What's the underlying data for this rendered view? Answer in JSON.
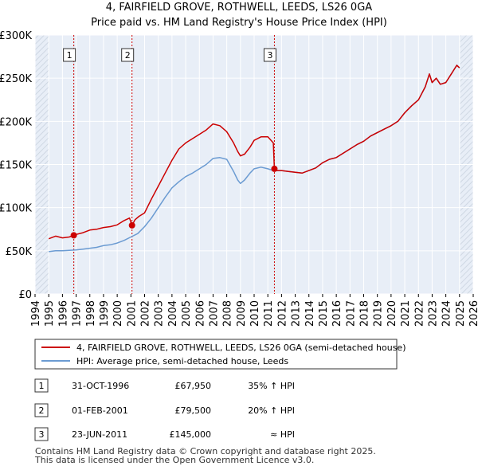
{
  "chart_data": {
    "type": "line",
    "title": "4, FAIRFIELD GROVE, ROTHWELL, LEEDS, LS26 0GA",
    "subtitle": "Price paid vs. HM Land Registry's House Price Index (HPI)",
    "xlabel": "",
    "ylabel": "",
    "xlim": [
      1994,
      2026
    ],
    "ylim": [
      0,
      300000
    ],
    "y_ticks": [
      0,
      50000,
      100000,
      150000,
      200000,
      250000,
      300000
    ],
    "y_tick_labels": [
      "£0",
      "£50K",
      "£100K",
      "£150K",
      "£200K",
      "£250K",
      "£300K"
    ],
    "x_ticks": [
      1994,
      1995,
      1996,
      1997,
      1998,
      1999,
      2000,
      2001,
      2002,
      2003,
      2004,
      2005,
      2006,
      2007,
      2008,
      2009,
      2010,
      2011,
      2012,
      2013,
      2014,
      2015,
      2016,
      2017,
      2018,
      2019,
      2020,
      2021,
      2022,
      2023,
      2024,
      2025,
      2026
    ],
    "x_tick_labels": [
      "1994",
      "1995",
      "1996",
      "1997",
      "1998",
      "1999",
      "2000",
      "2001",
      "2002",
      "2003",
      "2004",
      "2005",
      "2006",
      "2007",
      "2008",
      "2009",
      "2010",
      "2011",
      "2012",
      "2013",
      "2014",
      "2015",
      "2016",
      "2017",
      "2018",
      "2019",
      "2020",
      "2021",
      "2022",
      "2023",
      "2024",
      "2025",
      "2026"
    ],
    "grid": true,
    "series": [
      {
        "name": "4, FAIRFIELD GROVE, ROTHWELL, LEEDS, LS26 0GA (semi-detached house)",
        "color": "#cc0000",
        "x": [
          1995.0,
          1995.5,
          1996.0,
          1996.5,
          1996.83,
          1997.0,
          1997.5,
          1998.0,
          1998.5,
          1999.0,
          1999.5,
          2000.0,
          2000.5,
          2000.9,
          2001.08,
          2001.3,
          2001.6,
          2002.0,
          2002.5,
          2003.0,
          2003.5,
          2004.0,
          2004.5,
          2005.0,
          2005.5,
          2006.0,
          2006.5,
          2007.0,
          2007.5,
          2008.0,
          2008.5,
          2008.8,
          2009.0,
          2009.3,
          2009.7,
          2010.0,
          2010.5,
          2011.0,
          2011.4,
          2011.48,
          2011.6,
          2012.0,
          2012.5,
          2013.0,
          2013.5,
          2014.0,
          2014.5,
          2015.0,
          2015.5,
          2016.0,
          2016.5,
          2017.0,
          2017.5,
          2018.0,
          2018.5,
          2019.0,
          2019.5,
          2020.0,
          2020.5,
          2021.0,
          2021.5,
          2022.0,
          2022.5,
          2022.8,
          2023.0,
          2023.3,
          2023.6,
          2024.0,
          2024.4,
          2024.8,
          2025.0
        ],
        "values": [
          64000,
          67000,
          65000,
          66000,
          67950,
          69000,
          71000,
          74000,
          75000,
          77000,
          78000,
          80000,
          85000,
          88000,
          79500,
          86000,
          90000,
          94000,
          110000,
          125000,
          140000,
          155000,
          168000,
          175000,
          180000,
          185000,
          190000,
          197000,
          195000,
          188000,
          175000,
          165000,
          160000,
          162000,
          170000,
          178000,
          182000,
          182000,
          175000,
          145000,
          143000,
          143000,
          142000,
          141000,
          140000,
          143000,
          146000,
          152000,
          156000,
          158000,
          163000,
          168000,
          173000,
          177000,
          183000,
          187000,
          191000,
          195000,
          200000,
          210000,
          218000,
          225000,
          240000,
          255000,
          245000,
          250000,
          243000,
          245000,
          255000,
          265000,
          262000
        ]
      },
      {
        "name": "HPI: Average price, semi-detached house, Leeds",
        "color": "#6b9bd2",
        "x": [
          1995.0,
          1995.5,
          1996.0,
          1996.5,
          1997.0,
          1997.5,
          1998.0,
          1998.5,
          1999.0,
          1999.5,
          2000.0,
          2000.5,
          2001.0,
          2001.5,
          2002.0,
          2002.5,
          2003.0,
          2003.5,
          2004.0,
          2004.5,
          2005.0,
          2005.5,
          2006.0,
          2006.5,
          2007.0,
          2007.5,
          2008.0,
          2008.5,
          2008.8,
          2009.0,
          2009.3,
          2009.7,
          2010.0,
          2010.5,
          2011.0,
          2011.4,
          2011.48,
          2011.6,
          2012.0,
          2012.5,
          2013.0,
          2013.5,
          2014.0,
          2014.5,
          2015.0,
          2015.5,
          2016.0,
          2016.5,
          2017.0,
          2017.5,
          2018.0,
          2018.5,
          2019.0,
          2019.5,
          2020.0,
          2020.5,
          2021.0,
          2021.5,
          2022.0,
          2022.5,
          2022.8,
          2023.0,
          2023.3,
          2023.6,
          2024.0,
          2024.4,
          2024.8,
          2025.0
        ],
        "values": [
          49000,
          50000,
          50000,
          50500,
          51000,
          52000,
          53000,
          54000,
          56000,
          57000,
          59000,
          62000,
          66000,
          70000,
          78000,
          88000,
          100000,
          112000,
          123000,
          130000,
          136000,
          140000,
          145000,
          150000,
          157000,
          158000,
          156000,
          142000,
          132000,
          128000,
          132000,
          140000,
          145000,
          147000,
          145000,
          143000,
          145000,
          143000,
          143000,
          142000,
          141000,
          140000,
          143000,
          146000,
          152000,
          156000,
          158000,
          163000,
          168000,
          173000,
          177000,
          183000,
          187000,
          191000,
          195000,
          200000,
          210000,
          218000,
          225000,
          240000,
          255000,
          245000,
          250000,
          243000,
          245000,
          255000,
          265000,
          262000
        ]
      }
    ],
    "markers": [
      {
        "label": "1",
        "x": 1996.83,
        "y": 67950
      },
      {
        "label": "2",
        "x": 2001.08,
        "y": 79500
      },
      {
        "label": "3",
        "x": 2011.48,
        "y": 145000
      }
    ]
  },
  "legend": {
    "red_label": "4, FAIRFIELD GROVE, ROTHWELL, LEEDS, LS26 0GA (semi-detached house)",
    "blue_label": "HPI: Average price, semi-detached house, Leeds"
  },
  "transactions": [
    {
      "num": "1",
      "date": "31-OCT-1996",
      "price": "£67,950",
      "hpi": "35% ↑ HPI"
    },
    {
      "num": "2",
      "date": "01-FEB-2001",
      "price": "£79,500",
      "hpi": "20% ↑ HPI"
    },
    {
      "num": "3",
      "date": "23-JUN-2011",
      "price": "£145,000",
      "hpi": "≈ HPI"
    }
  ],
  "footer": {
    "line1": "Contains HM Land Registry data © Crown copyright and database right 2025.",
    "line2": "This data is licensed under the Open Government Licence v3.0."
  },
  "colors": {
    "red": "#cc0000",
    "blue": "#6b9bd2",
    "plot_bg": "#e8eef7",
    "hatch": "#d0d8e4",
    "grid": "#ffffff",
    "box_border": "#333333"
  }
}
